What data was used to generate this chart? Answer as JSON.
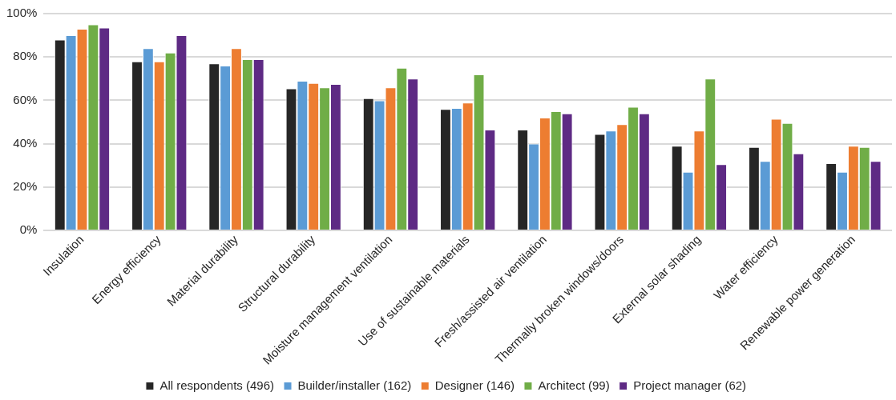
{
  "chart_data": {
    "type": "bar",
    "categories": [
      "Insulation",
      "Energy efficiency",
      "Material durability",
      "Structural durability",
      "Moisture management ventilation",
      "Use of sustainable materials",
      "Fresh/assisted air ventilation",
      "Thermally broken windows/doors",
      "External solar shading",
      "Water efficiency",
      "Renewable power generation"
    ],
    "series": [
      {
        "name": "All respondents (496)",
        "color": "#262626",
        "values": [
          88,
          78,
          77,
          65.5,
          61,
          56,
          46.5,
          44.5,
          39,
          38.5,
          31
        ]
      },
      {
        "name": "Builder/installer (162)",
        "color": "#5b9bd5",
        "values": [
          90,
          84,
          76,
          69,
          60,
          56.5,
          40,
          46,
          27,
          32,
          27
        ]
      },
      {
        "name": "Designer (146)",
        "color": "#ed7d31",
        "values": [
          93,
          78,
          84,
          68,
          66,
          59,
          52,
          49,
          46,
          51.5,
          39
        ]
      },
      {
        "name": "Architect (99)",
        "color": "#70ad47",
        "values": [
          95,
          82,
          79,
          66,
          75,
          72,
          55,
          57,
          70,
          49.5,
          38.5
        ]
      },
      {
        "name": "Project manager (62)",
        "color": "#5e2a84",
        "values": [
          93.5,
          90,
          79,
          67.5,
          70,
          46.5,
          54,
          54,
          30.5,
          35.5,
          32
        ]
      }
    ],
    "ylim": [
      0,
      100
    ],
    "yticks": [
      {
        "value": 0,
        "label": "0%"
      },
      {
        "value": 20,
        "label": "20%"
      },
      {
        "value": 40,
        "label": "40%"
      },
      {
        "value": 60,
        "label": "60%"
      },
      {
        "value": 80,
        "label": "80%"
      },
      {
        "value": 100,
        "label": "100%"
      }
    ],
    "grid": "y",
    "legend": "bottom"
  }
}
